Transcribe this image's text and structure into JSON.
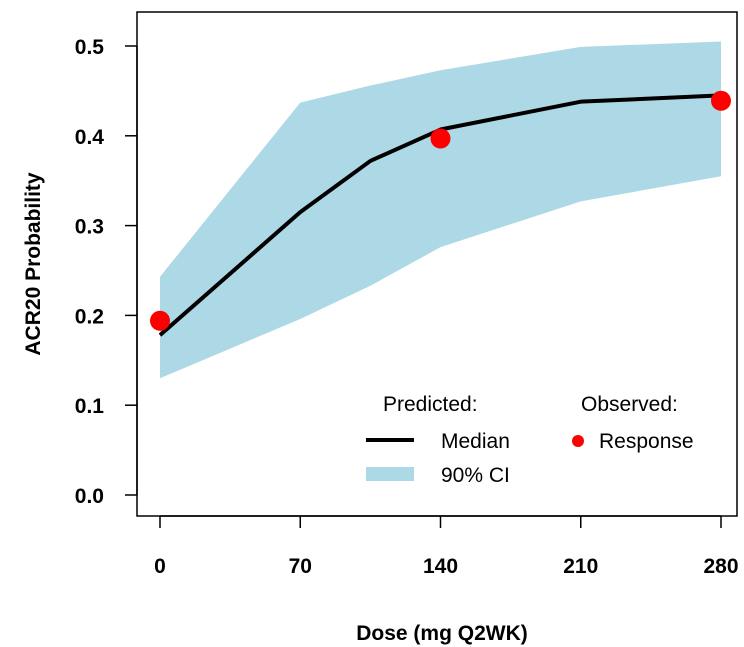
{
  "chart_data": {
    "type": "line",
    "xlabel": "Dose (mg Q2WK)",
    "ylabel": "ACR20 Probability",
    "xlim": [
      0,
      280
    ],
    "ylim": [
      0,
      0.5
    ],
    "x_ticks": [
      0,
      70,
      140,
      210,
      280
    ],
    "x_tick_labels": [
      "0",
      "70",
      "140",
      "210",
      "280"
    ],
    "y_ticks": [
      0.0,
      0.1,
      0.2,
      0.3,
      0.4,
      0.5
    ],
    "y_tick_labels": [
      "0.0",
      "0.1",
      "0.2",
      "0.3",
      "0.4",
      "0.5"
    ],
    "grid": false,
    "legend_position": "bottom-right",
    "series": [
      {
        "name": "Median",
        "kind": "line",
        "color": "#000000",
        "x": [
          0,
          70,
          105,
          140,
          210,
          280
        ],
        "y": [
          0.178,
          0.315,
          0.372,
          0.407,
          0.438,
          0.445
        ]
      },
      {
        "name": "90% CI",
        "kind": "band",
        "color": "#add8e6",
        "x": [
          0,
          70,
          105,
          140,
          210,
          280
        ],
        "lower": [
          0.13,
          0.196,
          0.233,
          0.276,
          0.327,
          0.355
        ],
        "upper": [
          0.243,
          0.437,
          0.456,
          0.473,
          0.499,
          0.505
        ]
      },
      {
        "name": "Response",
        "kind": "points",
        "color": "#ff0000",
        "x": [
          0,
          140,
          280
        ],
        "y": [
          0.194,
          0.397,
          0.439
        ]
      }
    ],
    "legend": {
      "predicted_header": "Predicted:",
      "observed_header": "Observed:",
      "median_label": "Median",
      "ci_label": "90% CI",
      "response_label": "Response"
    }
  }
}
